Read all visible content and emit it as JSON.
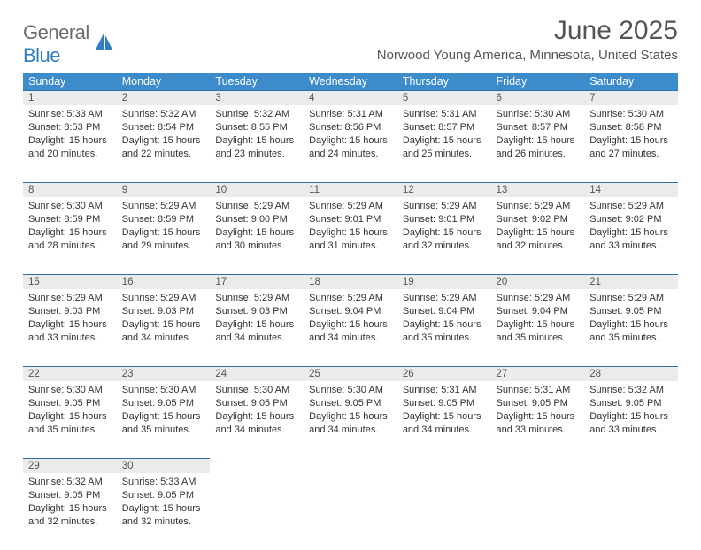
{
  "brand": {
    "text1": "General",
    "text2": "Blue",
    "color_general": "#6b6b6b",
    "color_blue": "#2f7ec2",
    "icon_color": "#2f7ec2"
  },
  "header": {
    "title": "June 2025",
    "location": "Norwood Young America, Minnesota, United States",
    "title_color": "#555555"
  },
  "calendar": {
    "header_bg": "#3c8ccc",
    "header_text_color": "#ffffff",
    "daynum_bg": "#ebebeb",
    "daynum_border": "#2f6fa8",
    "columns": [
      "Sunday",
      "Monday",
      "Tuesday",
      "Wednesday",
      "Thursday",
      "Friday",
      "Saturday"
    ],
    "weeks": [
      [
        {
          "n": "1",
          "sunrise": "5:33 AM",
          "sunset": "8:53 PM",
          "dl": "15 hours and 20 minutes."
        },
        {
          "n": "2",
          "sunrise": "5:32 AM",
          "sunset": "8:54 PM",
          "dl": "15 hours and 22 minutes."
        },
        {
          "n": "3",
          "sunrise": "5:32 AM",
          "sunset": "8:55 PM",
          "dl": "15 hours and 23 minutes."
        },
        {
          "n": "4",
          "sunrise": "5:31 AM",
          "sunset": "8:56 PM",
          "dl": "15 hours and 24 minutes."
        },
        {
          "n": "5",
          "sunrise": "5:31 AM",
          "sunset": "8:57 PM",
          "dl": "15 hours and 25 minutes."
        },
        {
          "n": "6",
          "sunrise": "5:30 AM",
          "sunset": "8:57 PM",
          "dl": "15 hours and 26 minutes."
        },
        {
          "n": "7",
          "sunrise": "5:30 AM",
          "sunset": "8:58 PM",
          "dl": "15 hours and 27 minutes."
        }
      ],
      [
        {
          "n": "8",
          "sunrise": "5:30 AM",
          "sunset": "8:59 PM",
          "dl": "15 hours and 28 minutes."
        },
        {
          "n": "9",
          "sunrise": "5:29 AM",
          "sunset": "8:59 PM",
          "dl": "15 hours and 29 minutes."
        },
        {
          "n": "10",
          "sunrise": "5:29 AM",
          "sunset": "9:00 PM",
          "dl": "15 hours and 30 minutes."
        },
        {
          "n": "11",
          "sunrise": "5:29 AM",
          "sunset": "9:01 PM",
          "dl": "15 hours and 31 minutes."
        },
        {
          "n": "12",
          "sunrise": "5:29 AM",
          "sunset": "9:01 PM",
          "dl": "15 hours and 32 minutes."
        },
        {
          "n": "13",
          "sunrise": "5:29 AM",
          "sunset": "9:02 PM",
          "dl": "15 hours and 32 minutes."
        },
        {
          "n": "14",
          "sunrise": "5:29 AM",
          "sunset": "9:02 PM",
          "dl": "15 hours and 33 minutes."
        }
      ],
      [
        {
          "n": "15",
          "sunrise": "5:29 AM",
          "sunset": "9:03 PM",
          "dl": "15 hours and 33 minutes."
        },
        {
          "n": "16",
          "sunrise": "5:29 AM",
          "sunset": "9:03 PM",
          "dl": "15 hours and 34 minutes."
        },
        {
          "n": "17",
          "sunrise": "5:29 AM",
          "sunset": "9:03 PM",
          "dl": "15 hours and 34 minutes."
        },
        {
          "n": "18",
          "sunrise": "5:29 AM",
          "sunset": "9:04 PM",
          "dl": "15 hours and 34 minutes."
        },
        {
          "n": "19",
          "sunrise": "5:29 AM",
          "sunset": "9:04 PM",
          "dl": "15 hours and 35 minutes."
        },
        {
          "n": "20",
          "sunrise": "5:29 AM",
          "sunset": "9:04 PM",
          "dl": "15 hours and 35 minutes."
        },
        {
          "n": "21",
          "sunrise": "5:29 AM",
          "sunset": "9:05 PM",
          "dl": "15 hours and 35 minutes."
        }
      ],
      [
        {
          "n": "22",
          "sunrise": "5:30 AM",
          "sunset": "9:05 PM",
          "dl": "15 hours and 35 minutes."
        },
        {
          "n": "23",
          "sunrise": "5:30 AM",
          "sunset": "9:05 PM",
          "dl": "15 hours and 35 minutes."
        },
        {
          "n": "24",
          "sunrise": "5:30 AM",
          "sunset": "9:05 PM",
          "dl": "15 hours and 34 minutes."
        },
        {
          "n": "25",
          "sunrise": "5:30 AM",
          "sunset": "9:05 PM",
          "dl": "15 hours and 34 minutes."
        },
        {
          "n": "26",
          "sunrise": "5:31 AM",
          "sunset": "9:05 PM",
          "dl": "15 hours and 34 minutes."
        },
        {
          "n": "27",
          "sunrise": "5:31 AM",
          "sunset": "9:05 PM",
          "dl": "15 hours and 33 minutes."
        },
        {
          "n": "28",
          "sunrise": "5:32 AM",
          "sunset": "9:05 PM",
          "dl": "15 hours and 33 minutes."
        }
      ],
      [
        {
          "n": "29",
          "sunrise": "5:32 AM",
          "sunset": "9:05 PM",
          "dl": "15 hours and 32 minutes."
        },
        {
          "n": "30",
          "sunrise": "5:33 AM",
          "sunset": "9:05 PM",
          "dl": "15 hours and 32 minutes."
        },
        null,
        null,
        null,
        null,
        null
      ]
    ],
    "labels": {
      "sunrise": "Sunrise:",
      "sunset": "Sunset:",
      "daylight": "Daylight:"
    }
  }
}
